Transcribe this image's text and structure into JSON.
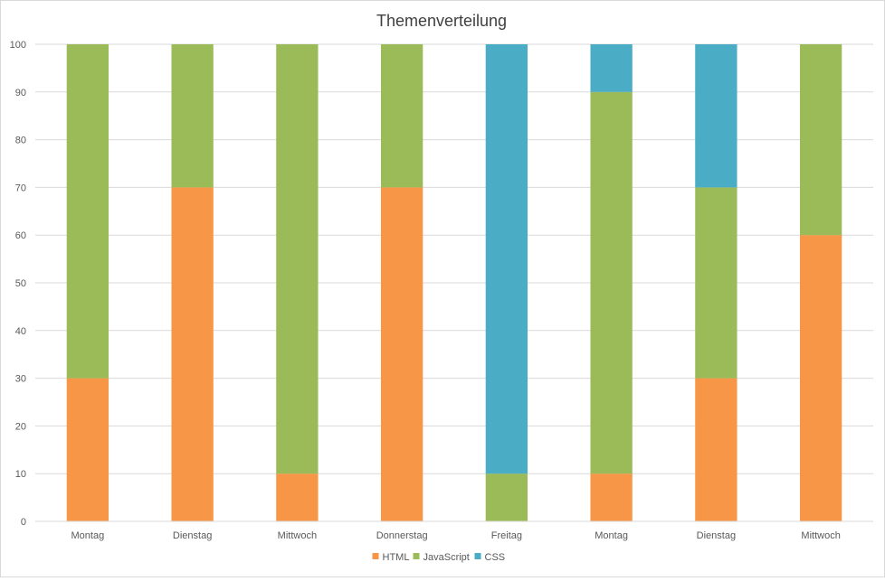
{
  "chart_data": {
    "type": "bar",
    "stacked": true,
    "title": "Themenverteilung",
    "xlabel": "",
    "ylabel": "",
    "categories": [
      "Montag",
      "Dienstag",
      "Mittwoch",
      "Donnerstag",
      "Freitag",
      "Montag",
      "Dienstag",
      "Mittwoch"
    ],
    "series": [
      {
        "name": "HTML",
        "values": [
          30,
          70,
          10,
          70,
          0,
          10,
          30,
          60
        ],
        "color": "#F79646"
      },
      {
        "name": "JavaScript",
        "values": [
          70,
          30,
          90,
          30,
          10,
          80,
          40,
          40
        ],
        "color": "#9BBB59"
      },
      {
        "name": "CSS",
        "values": [
          0,
          0,
          0,
          0,
          90,
          10,
          30,
          0
        ],
        "color": "#4BACC6"
      }
    ],
    "ylim": [
      0,
      100
    ],
    "yticks": [
      0,
      10,
      20,
      30,
      40,
      50,
      60,
      70,
      80,
      90,
      100
    ],
    "grid": true,
    "legend_position": "bottom"
  }
}
